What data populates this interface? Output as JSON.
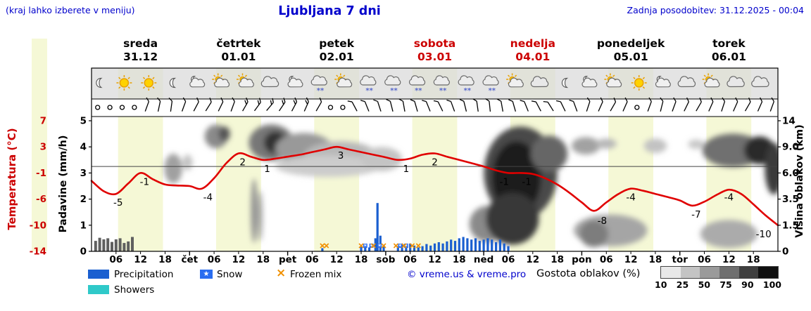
{
  "header": {
    "hint": "(kraj lahko izberete v meniju)",
    "title": "Ljubljana 7 dni",
    "updated": "Zadnja posodobitev: 31.12.2025 - 00:04"
  },
  "axes": {
    "left_primary": "Temperatura (°C)",
    "left_secondary": "Padavine (mm/h)",
    "right": "Višina oblakov (km)"
  },
  "legend": {
    "precipitation": "Precipitation",
    "snow": "Snow",
    "frozen_mix": "Frozen mix",
    "showers": "Showers",
    "copyright": "© vreme.us & vreme.pro",
    "cloud_density_label": "Gostota oblakov (%)",
    "scale_labels": [
      "10",
      "25",
      "50",
      "75",
      "90",
      "100"
    ]
  },
  "colors": {
    "accent_blue": "#0000cc",
    "red": "#cc0000",
    "temp_line": "#e00000",
    "precipitation": "#1a5fd0",
    "showers": "#2fc9c9",
    "frozen_mix": "#f09000",
    "snow_marker": "#2a6df0",
    "day_band": "#f5f8d6",
    "gray_bar": "#5f5f5f",
    "cloud_scale": [
      "#e8e8e8",
      "#c4c4c4",
      "#9a9a9a",
      "#6f6f6f",
      "#3f3f3f",
      "#101010"
    ]
  },
  "chart_data": {
    "type": "meteogram",
    "days": [
      {
        "name": "sreda",
        "date": "31.12",
        "color": "#000000"
      },
      {
        "name": "četrtek",
        "date": "01.01",
        "color": "#000000"
      },
      {
        "name": "petek",
        "date": "02.01",
        "color": "#000000"
      },
      {
        "name": "sobota",
        "date": "03.01",
        "color": "#cc0000"
      },
      {
        "name": "nedelja",
        "date": "04.01",
        "color": "#cc0000"
      },
      {
        "name": "ponedeljek",
        "date": "05.01",
        "color": "#000000"
      },
      {
        "name": "torek",
        "date": "06.01",
        "color": "#000000"
      }
    ],
    "x_axis": {
      "hour_labels": [
        "06",
        "12",
        "18"
      ],
      "day_abbrevs": [
        "čet",
        "pet",
        "sob",
        "ned",
        "pon",
        "tor"
      ]
    },
    "temperature_axis": {
      "tick_labels": [
        "7",
        "3",
        "-1",
        "-6",
        "-10",
        "-14"
      ],
      "tick_values": [
        7,
        3,
        -1,
        -6,
        -10,
        -14
      ]
    },
    "precip_axis": {
      "tick_labels": [
        "5",
        "4",
        "3",
        "2",
        "1",
        "0"
      ],
      "tick_values": [
        5,
        4,
        3,
        2,
        1,
        0
      ]
    },
    "cloud_height_axis": {
      "tick_labels": [
        "14",
        "9.0",
        "6.0",
        "3.5",
        "1.5",
        "0"
      ],
      "tick_values": [
        14,
        9,
        6,
        3.5,
        1.5,
        0
      ]
    },
    "daylight": {
      "start": 6.5,
      "end": 17.5
    },
    "zero_line_temp": 0,
    "temperature_series": {
      "hours": [
        0,
        3,
        6,
        9,
        12,
        15,
        18,
        21,
        24,
        27,
        30,
        33,
        36,
        39,
        42,
        45,
        48,
        51,
        54,
        57,
        60,
        63,
        66,
        69,
        72,
        75,
        78,
        81,
        84,
        87,
        90,
        93,
        96,
        99,
        102,
        105,
        108,
        111,
        114,
        117,
        120,
        123,
        126,
        129,
        132,
        135,
        138,
        141,
        144,
        147,
        150,
        153,
        156,
        159,
        162,
        165,
        168
      ],
      "values": [
        -2.5,
        -4.5,
        -5,
        -3,
        -1,
        -2.2,
        -3.2,
        -3.4,
        -3.5,
        -4,
        -2,
        0.5,
        2,
        1.5,
        1,
        1.2,
        1.5,
        1.8,
        2.2,
        2.6,
        3,
        2.6,
        2.2,
        1.8,
        1.4,
        1,
        1.2,
        1.8,
        2,
        1.5,
        1,
        0.5,
        0,
        -0.6,
        -1,
        -1,
        -1.2,
        -2,
        -3.2,
        -4.8,
        -6.5,
        -7.8,
        -6.5,
        -5,
        -4,
        -4.4,
        -5,
        -5.6,
        -6.2,
        -7,
        -6.4,
        -5.2,
        -4.2,
        -5,
        -6.8,
        -8.5,
        -10
      ]
    },
    "temperature_labels": [
      {
        "h": 6.5,
        "v": -5
      },
      {
        "h": 13,
        "v": -1
      },
      {
        "h": 28.5,
        "v": -4
      },
      {
        "h": 37,
        "v": 2
      },
      {
        "h": 43,
        "v": 1
      },
      {
        "h": 61,
        "v": 3
      },
      {
        "h": 77,
        "v": 1
      },
      {
        "h": 84,
        "v": 2
      },
      {
        "h": 101,
        "v": -1
      },
      {
        "h": 106.5,
        "v": -1
      },
      {
        "h": 125,
        "v": -8
      },
      {
        "h": 132,
        "v": -4
      },
      {
        "h": 148,
        "v": -7
      },
      {
        "h": 156,
        "v": -4
      },
      {
        "h": 164.5,
        "v": -10
      }
    ],
    "precip_bars": [
      {
        "h": 56.5,
        "mm": 0.12
      },
      {
        "h": 66,
        "mm": 0.18
      },
      {
        "h": 67,
        "mm": 0.22
      },
      {
        "h": 68,
        "mm": 0.15
      },
      {
        "h": 69.5,
        "mm": 0.5
      },
      {
        "h": 70,
        "mm": 1.85
      },
      {
        "h": 70.7,
        "mm": 0.6
      },
      {
        "h": 71.5,
        "mm": 0.25
      },
      {
        "h": 75,
        "mm": 0.2
      },
      {
        "h": 76,
        "mm": 0.25
      },
      {
        "h": 77,
        "mm": 0.18
      },
      {
        "h": 78,
        "mm": 0.3
      },
      {
        "h": 79,
        "mm": 0.22
      },
      {
        "h": 80,
        "mm": 0.15
      },
      {
        "h": 81,
        "mm": 0.2
      },
      {
        "h": 82,
        "mm": 0.28
      },
      {
        "h": 83,
        "mm": 0.22
      },
      {
        "h": 84,
        "mm": 0.3
      },
      {
        "h": 85,
        "mm": 0.35
      },
      {
        "h": 86,
        "mm": 0.3
      },
      {
        "h": 87,
        "mm": 0.38
      },
      {
        "h": 88,
        "mm": 0.45
      },
      {
        "h": 89,
        "mm": 0.4
      },
      {
        "h": 90,
        "mm": 0.5
      },
      {
        "h": 91,
        "mm": 0.55
      },
      {
        "h": 92,
        "mm": 0.5
      },
      {
        "h": 93,
        "mm": 0.45
      },
      {
        "h": 94,
        "mm": 0.5
      },
      {
        "h": 95,
        "mm": 0.4
      },
      {
        "h": 96,
        "mm": 0.45
      },
      {
        "h": 97,
        "mm": 0.5
      },
      {
        "h": 98,
        "mm": 0.45
      },
      {
        "h": 99,
        "mm": 0.35
      },
      {
        "h": 100,
        "mm": 0.45
      },
      {
        "h": 101,
        "mm": 0.3
      },
      {
        "h": 102,
        "mm": 0.2
      }
    ],
    "gray_bars": [
      {
        "h": 1,
        "mm": 0.4
      },
      {
        "h": 2,
        "mm": 0.52
      },
      {
        "h": 3,
        "mm": 0.46
      },
      {
        "h": 4,
        "mm": 0.5
      },
      {
        "h": 5,
        "mm": 0.36
      },
      {
        "h": 6,
        "mm": 0.46
      },
      {
        "h": 7,
        "mm": 0.5
      },
      {
        "h": 8,
        "mm": 0.32
      },
      {
        "h": 9,
        "mm": 0.38
      },
      {
        "h": 10,
        "mm": 0.55
      }
    ],
    "snow_markers": [
      67,
      68.5,
      70.5,
      75.5,
      77
    ],
    "frozen_markers": [
      56.5,
      57.5,
      66,
      69,
      71.5,
      74.5,
      76.5,
      78.5,
      80
    ],
    "clouds": [
      {
        "h": 20,
        "km": 6.5,
        "rh": 2.2,
        "rkm": 1.6,
        "c": "#a0a0a0"
      },
      {
        "h": 23.5,
        "km": 7.2,
        "rh": 1.2,
        "rkm": 0.9,
        "c": "#c2c2c2"
      },
      {
        "h": 30.5,
        "km": 11,
        "rh": 2.8,
        "rkm": 2.2,
        "c": "#8a8a8a"
      },
      {
        "h": 32.5,
        "km": 11.5,
        "rh": 1.4,
        "rkm": 1.4,
        "c": "#555555"
      },
      {
        "h": 44,
        "km": 9.8,
        "rh": 5.5,
        "rkm": 2.8,
        "c": "#777777"
      },
      {
        "h": 45,
        "km": 9.8,
        "rh": 2.8,
        "rkm": 1.8,
        "c": "#333333"
      },
      {
        "h": 52,
        "km": 8.8,
        "rh": 7,
        "rkm": 2.2,
        "c": "#999999"
      },
      {
        "h": 61,
        "km": 8,
        "rh": 9,
        "rkm": 1.8,
        "c": "#b8b8b8"
      },
      {
        "h": 58,
        "km": 6.8,
        "rh": 13,
        "rkm": 1.2,
        "c": "#cccccc"
      },
      {
        "h": 71,
        "km": 7.6,
        "rh": 5,
        "rkm": 1.4,
        "c": "#c4c4c4"
      },
      {
        "h": 39.8,
        "km": 2.6,
        "rh": 0.8,
        "rkm": 2.4,
        "c": "#909090"
      },
      {
        "h": 41.3,
        "km": 2.2,
        "rh": 0.6,
        "rkm": 1.8,
        "c": "#a8a8a8"
      },
      {
        "h": 97,
        "km": 1.6,
        "rh": 4.5,
        "rkm": 1.2,
        "c": "#8a8a8a"
      },
      {
        "h": 105,
        "km": 6,
        "rh": 9,
        "rkm": 4.8,
        "c": "#4a4a4a"
      },
      {
        "h": 104,
        "km": 5.5,
        "rh": 6,
        "rkm": 3.6,
        "c": "#1e1e1e"
      },
      {
        "h": 103,
        "km": 2,
        "rh": 6.5,
        "rkm": 1.8,
        "c": "#383838"
      },
      {
        "h": 112,
        "km": 8.2,
        "rh": 4.5,
        "rkm": 2.4,
        "c": "#666666"
      },
      {
        "h": 121,
        "km": 9.2,
        "rh": 3.5,
        "rkm": 1.3,
        "c": "#a2a2a2"
      },
      {
        "h": 126,
        "km": 9.6,
        "rh": 2.5,
        "rkm": 0.9,
        "c": "#b8b8b8"
      },
      {
        "h": 127,
        "km": 1.2,
        "rh": 9,
        "rkm": 1,
        "c": "#a5a5a5"
      },
      {
        "h": 123,
        "km": 1,
        "rh": 3.5,
        "rkm": 0.8,
        "c": "#7d7d7d"
      },
      {
        "h": 138,
        "km": 9.2,
        "rh": 2.8,
        "rkm": 1.1,
        "c": "#c2c2c2"
      },
      {
        "h": 148,
        "km": 9.5,
        "rh": 2,
        "rkm": 0.8,
        "c": "#c8c8c8"
      },
      {
        "h": 157,
        "km": 8.6,
        "rh": 7.5,
        "rkm": 2.3,
        "c": "#6f6f6f"
      },
      {
        "h": 163.5,
        "km": 8.6,
        "rh": 3.8,
        "rkm": 1.9,
        "c": "#2b2b2b"
      },
      {
        "h": 167,
        "km": 6.5,
        "rh": 2.2,
        "rkm": 2.8,
        "c": "#3a3a3a"
      },
      {
        "h": 156,
        "km": 1,
        "rh": 7,
        "rkm": 0.85,
        "c": "#ababab"
      }
    ],
    "icons": [
      "moon",
      "sun",
      "sun",
      "moon",
      "pmoon",
      "psun",
      "psun",
      "cloud",
      "pmoon",
      "snow",
      "psun",
      "snow",
      "snow",
      "snow",
      "snow",
      "snow",
      "snow",
      "psun",
      "cloud",
      "moon",
      "pmoon",
      "psun",
      "sun",
      "pmoon",
      "cloud",
      "psun",
      "cloud",
      "cloud"
    ],
    "winds": [
      {
        "a": null,
        "n": 0
      },
      {
        "a": null,
        "n": 0
      },
      {
        "a": null,
        "n": 0
      },
      {
        "a": null,
        "n": 0
      },
      {
        "a": -70,
        "n": 1
      },
      {
        "a": -78,
        "n": 1
      },
      {
        "a": -82,
        "n": 1
      },
      {
        "a": -70,
        "n": 1
      },
      {
        "a": -62,
        "n": 1
      },
      {
        "a": -58,
        "n": 1
      },
      {
        "a": -64,
        "n": 1
      },
      {
        "a": -70,
        "n": 1
      },
      {
        "a": -60,
        "n": 2
      },
      {
        "a": -54,
        "n": 2
      },
      {
        "a": -50,
        "n": 2
      },
      {
        "a": -56,
        "n": 2
      },
      {
        "a": -62,
        "n": 2
      },
      {
        "a": -66,
        "n": 2
      },
      {
        "a": -60,
        "n": 1
      },
      {
        "a": null,
        "n": 0
      },
      {
        "a": null,
        "n": 0
      },
      {
        "a": -118,
        "n": 1
      },
      {
        "a": -112,
        "n": 1
      },
      {
        "a": -108,
        "n": 1
      },
      {
        "a": -104,
        "n": 1
      },
      {
        "a": -100,
        "n": 1
      },
      {
        "a": -106,
        "n": 1
      },
      {
        "a": -112,
        "n": 1
      },
      {
        "a": -116,
        "n": 1
      },
      {
        "a": -110,
        "n": 1
      },
      {
        "a": -104,
        "n": 1
      },
      {
        "a": -98,
        "n": 1
      },
      {
        "a": -96,
        "n": 1
      },
      {
        "a": -100,
        "n": 1
      },
      {
        "a": -106,
        "n": 1
      },
      {
        "a": -112,
        "n": 1
      },
      {
        "a": -118,
        "n": 1
      },
      {
        "a": -122,
        "n": 1
      },
      {
        "a": -116,
        "n": 1
      },
      {
        "a": -110,
        "n": 1
      },
      {
        "a": -72,
        "n": 1
      },
      {
        "a": -66,
        "n": 1
      },
      {
        "a": -60,
        "n": 1
      },
      {
        "a": -66,
        "n": 1
      },
      {
        "a": null,
        "n": 0
      },
      {
        "a": -70,
        "n": 1
      },
      {
        "a": -76,
        "n": 1
      },
      {
        "a": -70,
        "n": 1
      },
      {
        "a": -64,
        "n": 1
      },
      {
        "a": -60,
        "n": 1
      },
      {
        "a": -66,
        "n": 1
      },
      {
        "a": -72,
        "n": 1
      },
      {
        "a": -66,
        "n": 1
      },
      {
        "a": -60,
        "n": 1
      },
      {
        "a": -66,
        "n": 1
      },
      {
        "a": -70,
        "n": 1
      }
    ]
  }
}
